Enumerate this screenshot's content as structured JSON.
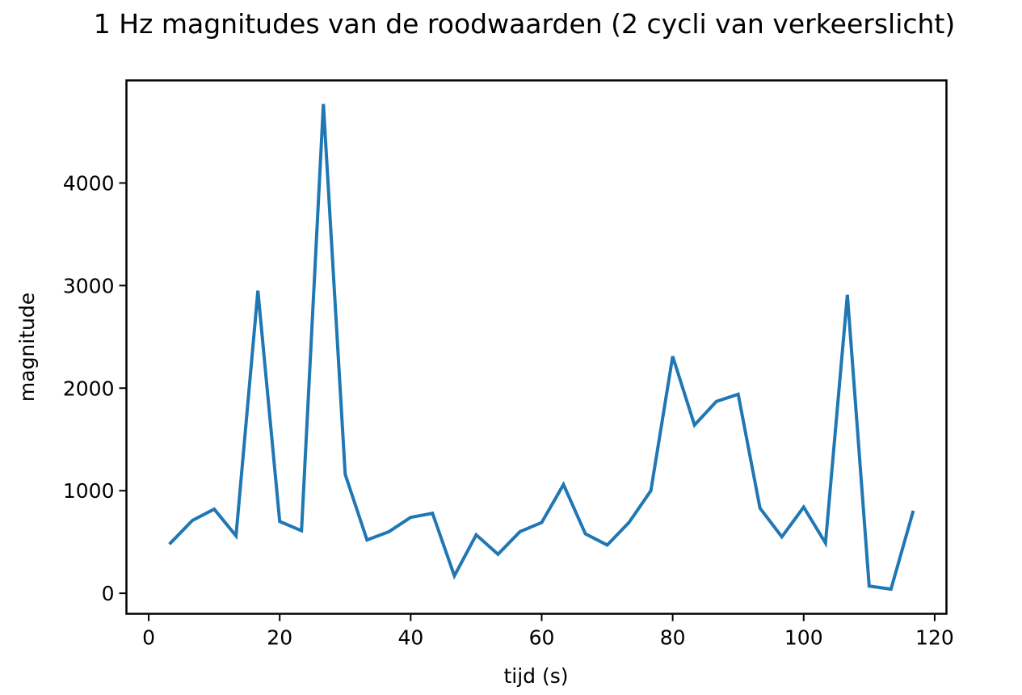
{
  "chart_data": {
    "type": "line",
    "title": "1 Hz magnitudes van de roodwaarden (2 cycli van verkeerslicht)",
    "xlabel": "tijd (s)",
    "ylabel": "magnitude",
    "xlim": [
      -3.4,
      121.8
    ],
    "ylim": [
      -200,
      5000
    ],
    "xticks": [
      0,
      20,
      40,
      60,
      80,
      100,
      120
    ],
    "yticks": [
      0,
      1000,
      2000,
      3000,
      4000
    ],
    "grid": false,
    "legend": "none",
    "series": [
      {
        "color": "#1f77b4",
        "x": [
          3.33,
          6.67,
          10,
          13.33,
          16.67,
          20,
          23.33,
          26.67,
          30,
          33.33,
          36.67,
          40,
          43.33,
          46.67,
          50,
          53.33,
          56.67,
          60,
          63.33,
          66.67,
          70,
          73.33,
          76.67,
          80,
          83.33,
          86.67,
          90,
          93.33,
          96.67,
          100,
          103.33,
          106.67,
          110,
          113.33,
          116.67
        ],
        "y": [
          490,
          710,
          820,
          560,
          2950,
          700,
          610,
          4770,
          1160,
          520,
          600,
          740,
          780,
          170,
          570,
          380,
          600,
          690,
          1060,
          580,
          470,
          690,
          1000,
          2310,
          1640,
          1870,
          1940,
          830,
          550,
          840,
          490,
          2910,
          70,
          40,
          790
        ]
      }
    ]
  }
}
